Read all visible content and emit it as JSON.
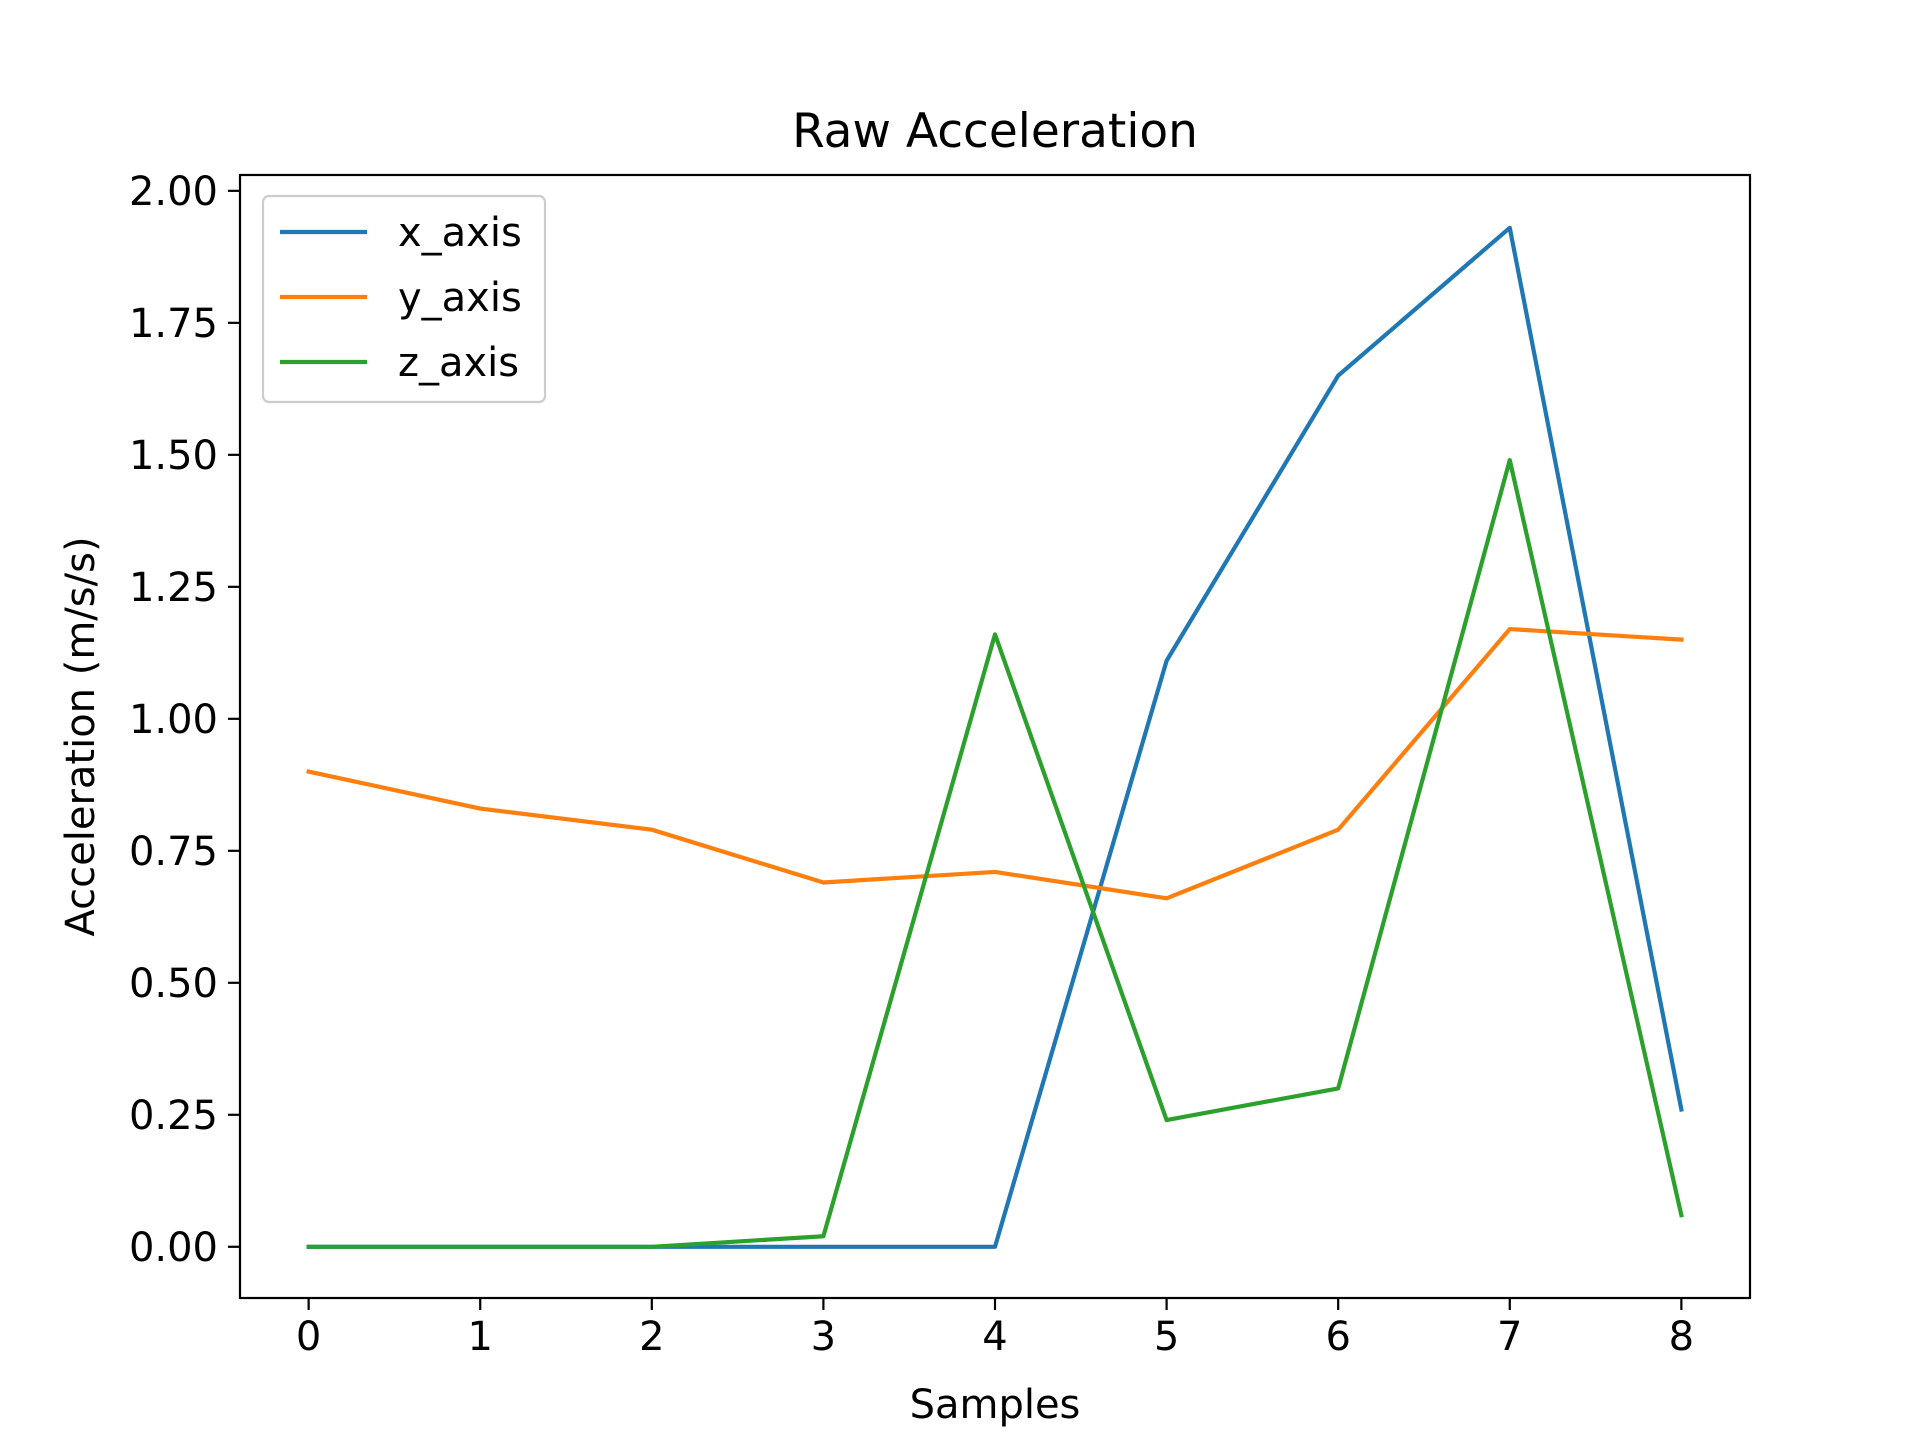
{
  "chart_data": {
    "type": "line",
    "title": "Raw Acceleration",
    "xlabel": "Samples",
    "ylabel": "Acceleration (m/s/s)",
    "x": [
      0,
      1,
      2,
      3,
      4,
      5,
      6,
      7,
      8
    ],
    "xlim": [
      -0.4,
      8.4
    ],
    "ylim": [
      -0.097,
      2.03
    ],
    "xticks": [
      0,
      1,
      2,
      3,
      4,
      5,
      6,
      7,
      8
    ],
    "yticks": [
      0.0,
      0.25,
      0.5,
      0.75,
      1.0,
      1.25,
      1.5,
      1.75,
      2.0
    ],
    "ytick_labels": [
      "0.00",
      "0.25",
      "0.50",
      "0.75",
      "1.00",
      "1.25",
      "1.50",
      "1.75",
      "2.00"
    ],
    "xtick_labels": [
      "0",
      "1",
      "2",
      "3",
      "4",
      "5",
      "6",
      "7",
      "8"
    ],
    "grid": false,
    "legend_position": "top-left",
    "series": [
      {
        "name": "x_axis",
        "color": "#1f77b4",
        "values": [
          0,
          0,
          0,
          0,
          0,
          1.11,
          1.65,
          1.93,
          0.26
        ]
      },
      {
        "name": "y_axis",
        "color": "#ff7f0e",
        "values": [
          0.9,
          0.83,
          0.79,
          0.69,
          0.71,
          0.66,
          0.79,
          1.17,
          1.15
        ]
      },
      {
        "name": "z_axis",
        "color": "#2ca02c",
        "values": [
          0,
          0,
          0,
          0.02,
          1.16,
          0.24,
          0.3,
          1.49,
          0.06
        ]
      }
    ]
  }
}
